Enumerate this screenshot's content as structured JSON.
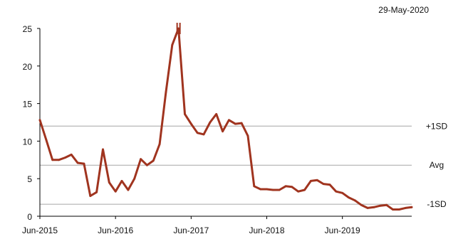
{
  "date_label": "29-May-2020",
  "chart_data": {
    "type": "line",
    "title": "",
    "xlabel": "",
    "ylabel": "",
    "ylim": [
      0,
      25
    ],
    "yticks": [
      0,
      5,
      10,
      15,
      20,
      25
    ],
    "x_ticks": [
      "Jun-2015",
      "Jun-2016",
      "Jun-2017",
      "Jun-2018",
      "Jun-2019"
    ],
    "x_range": [
      "2015-06",
      "2020-05"
    ],
    "grid": false,
    "colors": {
      "series": "#A0341F",
      "reference": "#A6A6A6",
      "axis": "#000000"
    },
    "reference_lines": [
      {
        "label": "+1SD",
        "value": 12.0
      },
      {
        "label": "Avg",
        "value": 6.8
      },
      {
        "label": "-1SD",
        "value": 1.6
      }
    ],
    "series": [
      {
        "x": [
          "2015-06",
          "2015-07",
          "2015-08",
          "2015-09",
          "2015-10",
          "2015-11",
          "2015-12",
          "2016-01",
          "2016-02",
          "2016-03",
          "2016-04",
          "2016-05",
          "2016-06",
          "2016-07",
          "2016-08",
          "2016-09",
          "2016-10",
          "2016-11",
          "2016-12",
          "2017-01",
          "2017-02",
          "2017-03",
          "2017-04",
          "2017-05",
          "2017-06",
          "2017-07",
          "2017-08",
          "2017-09",
          "2017-10",
          "2017-11",
          "2017-12",
          "2018-01",
          "2018-02",
          "2018-03",
          "2018-04",
          "2018-05",
          "2018-06",
          "2018-07",
          "2018-08",
          "2018-09",
          "2018-10",
          "2018-11",
          "2018-12",
          "2019-01",
          "2019-02",
          "2019-03",
          "2019-04",
          "2019-05",
          "2019-06",
          "2019-07",
          "2019-08",
          "2019-09",
          "2019-10",
          "2019-11",
          "2019-12",
          "2020-01",
          "2020-02",
          "2020-03",
          "2020-04",
          "2020-05"
        ],
        "values": [
          12.8,
          10.2,
          7.5,
          7.5,
          7.8,
          8.2,
          7.1,
          7.0,
          2.7,
          3.2,
          8.9,
          4.5,
          3.3,
          4.7,
          3.5,
          5.0,
          7.6,
          6.8,
          7.4,
          9.6,
          16.5,
          22.8,
          25.0,
          13.6,
          12.3,
          11.1,
          10.9,
          12.5,
          13.6,
          11.3,
          12.8,
          12.3,
          12.4,
          10.7,
          4.0,
          3.6,
          3.6,
          3.5,
          3.5,
          4.0,
          3.9,
          3.3,
          3.5,
          4.7,
          4.8,
          4.3,
          4.2,
          3.3,
          3.1,
          2.5,
          2.1,
          1.5,
          1.1,
          1.2,
          1.4,
          1.5,
          0.9,
          0.9,
          1.1,
          1.2
        ]
      }
    ]
  }
}
